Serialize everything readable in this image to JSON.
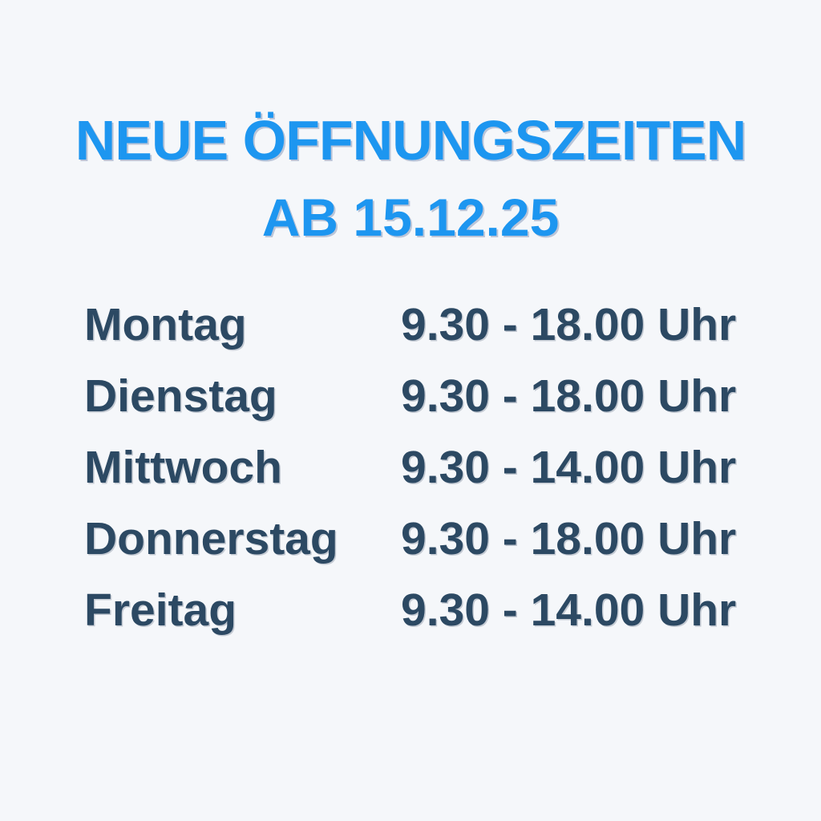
{
  "poster": {
    "title_line1": "NEUE ÖFFNUNGSZEITEN",
    "title_line2": "AB 15.12.25"
  },
  "schedule": {
    "rows": [
      {
        "day": "Montag",
        "hours": "9.30 - 18.00 Uhr"
      },
      {
        "day": "Dienstag",
        "hours": "9.30 - 18.00 Uhr"
      },
      {
        "day": "Mittwoch",
        "hours": "9.30 - 14.00 Uhr"
      },
      {
        "day": "Donnerstag",
        "hours": "9.30 - 18.00 Uhr"
      },
      {
        "day": "Freitag",
        "hours": "9.30 - 14.00 Uhr"
      }
    ]
  },
  "colors": {
    "background": "#f5f7fa",
    "title_blue": "#1d96f0",
    "text_dark": "#2c4963"
  }
}
